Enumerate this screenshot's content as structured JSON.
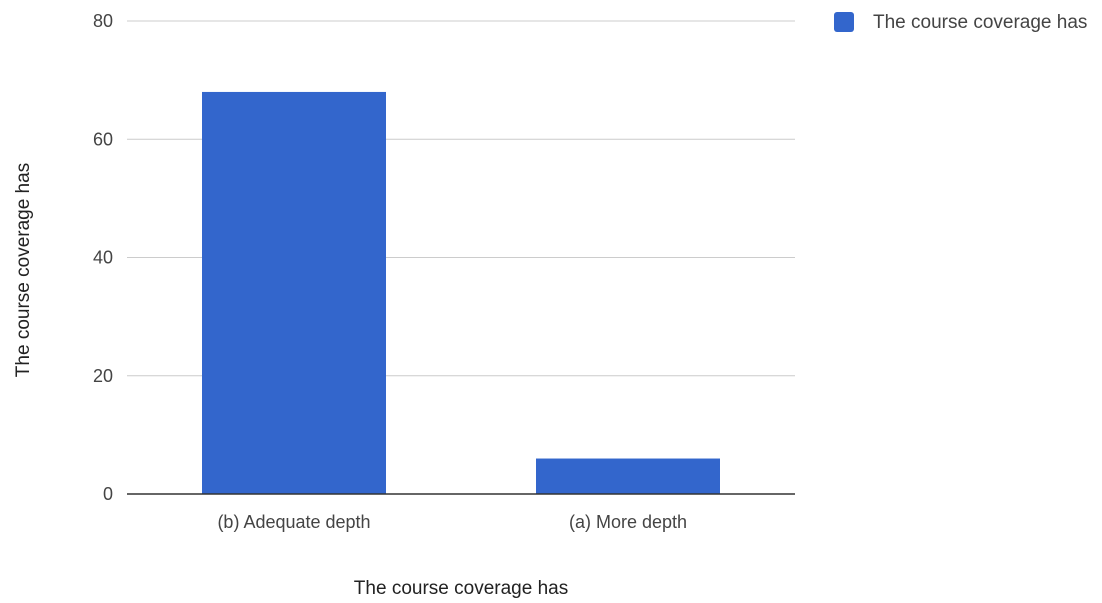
{
  "chart_data": {
    "type": "bar",
    "categories": [
      "(b) Adequate depth",
      "(a) More depth"
    ],
    "series": [
      {
        "name": "The course coverage has",
        "values": [
          68,
          6
        ],
        "color": "#3366cc"
      }
    ],
    "xlabel": "The course coverage has",
    "ylabel": "The course coverage has",
    "ylim": [
      0,
      80
    ],
    "yticks": [
      "0",
      "20",
      "40",
      "60",
      "80"
    ],
    "grid": true,
    "legend_position": "top-right"
  }
}
